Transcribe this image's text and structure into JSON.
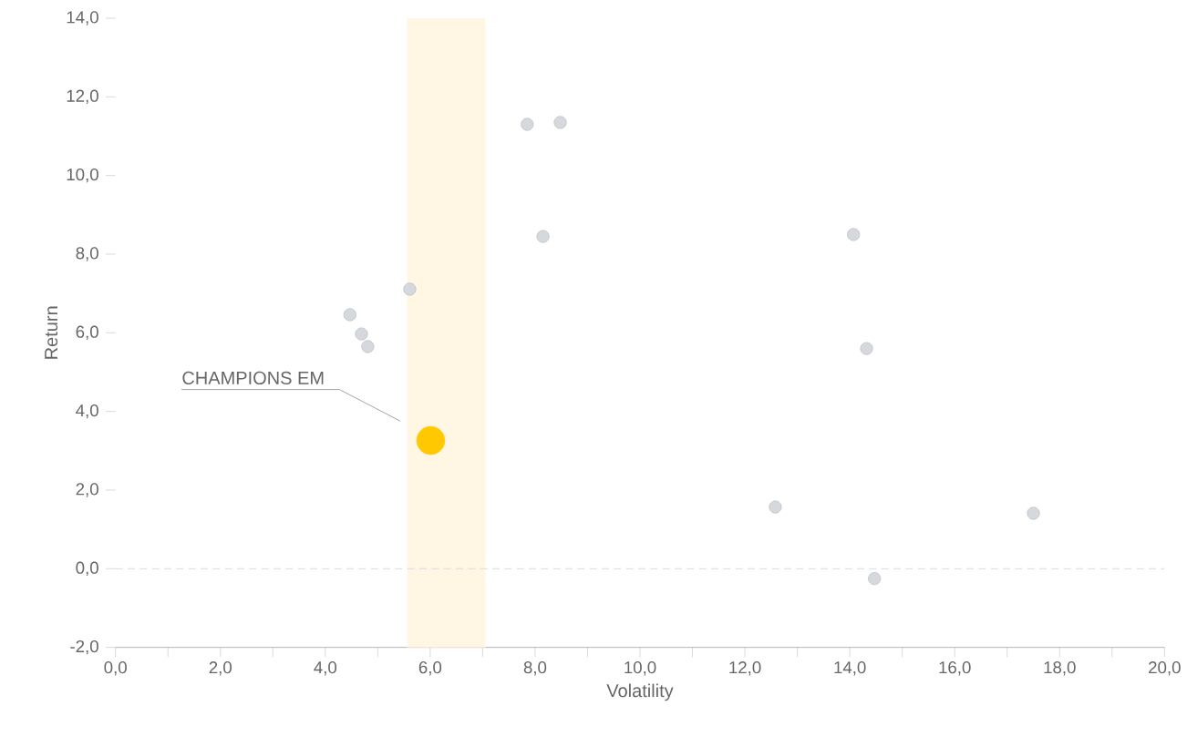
{
  "chart_data": {
    "type": "scatter",
    "xlabel": "Volatility",
    "ylabel": "Return",
    "xlim": [
      0,
      20
    ],
    "ylim": [
      -2,
      14
    ],
    "xticks": [
      {
        "value": 0,
        "label": "0,0"
      },
      {
        "value": 1,
        "label": null
      },
      {
        "value": 2,
        "label": "2,0"
      },
      {
        "value": 3,
        "label": null
      },
      {
        "value": 4,
        "label": "4,0"
      },
      {
        "value": 5,
        "label": null
      },
      {
        "value": 6,
        "label": "6,0"
      },
      {
        "value": 7,
        "label": null
      },
      {
        "value": 8,
        "label": "8,0"
      },
      {
        "value": 9,
        "label": null
      },
      {
        "value": 10,
        "label": "10,0"
      },
      {
        "value": 11,
        "label": null
      },
      {
        "value": 12,
        "label": "12,0"
      },
      {
        "value": 13,
        "label": null
      },
      {
        "value": 14,
        "label": "14,0"
      },
      {
        "value": 15,
        "label": null
      },
      {
        "value": 16,
        "label": "16,0"
      },
      {
        "value": 17,
        "label": null
      },
      {
        "value": 18,
        "label": "18,0"
      },
      {
        "value": 19,
        "label": null
      },
      {
        "value": 20,
        "label": "20,0"
      }
    ],
    "yticks": [
      {
        "value": -2,
        "label": "-2,0"
      },
      {
        "value": 0,
        "label": "0,0"
      },
      {
        "value": 2,
        "label": "2,0"
      },
      {
        "value": 4,
        "label": "4,0"
      },
      {
        "value": 6,
        "label": "6,0"
      },
      {
        "value": 8,
        "label": "8,0"
      },
      {
        "value": 10,
        "label": "10,0"
      },
      {
        "value": 12,
        "label": "12,0"
      },
      {
        "value": 14,
        "label": "14,0"
      }
    ],
    "marker": "circle",
    "series": [
      {
        "color": "#d5d9de",
        "x": [
          4.47,
          4.69,
          4.81,
          5.61,
          7.85,
          8.48,
          8.15,
          14.07,
          14.32,
          12.58,
          14.47,
          17.5
        ],
        "values": [
          6.46,
          5.97,
          5.65,
          7.11,
          11.3,
          11.35,
          8.45,
          8.5,
          5.6,
          1.57,
          -0.25,
          1.41
        ]
      },
      {
        "name": "CHAMPIONS EM",
        "color": "#ffc800",
        "x": [
          6.01
        ],
        "values": [
          3.26
        ]
      }
    ],
    "ref_lines": [
      {
        "axis": "y",
        "value": 0,
        "color": "#dde1e5",
        "line_style": "dashed"
      }
    ],
    "bands": [
      {
        "axis": "x",
        "from": 5.56,
        "to": 7.05,
        "color": "#fff6e3"
      }
    ]
  }
}
